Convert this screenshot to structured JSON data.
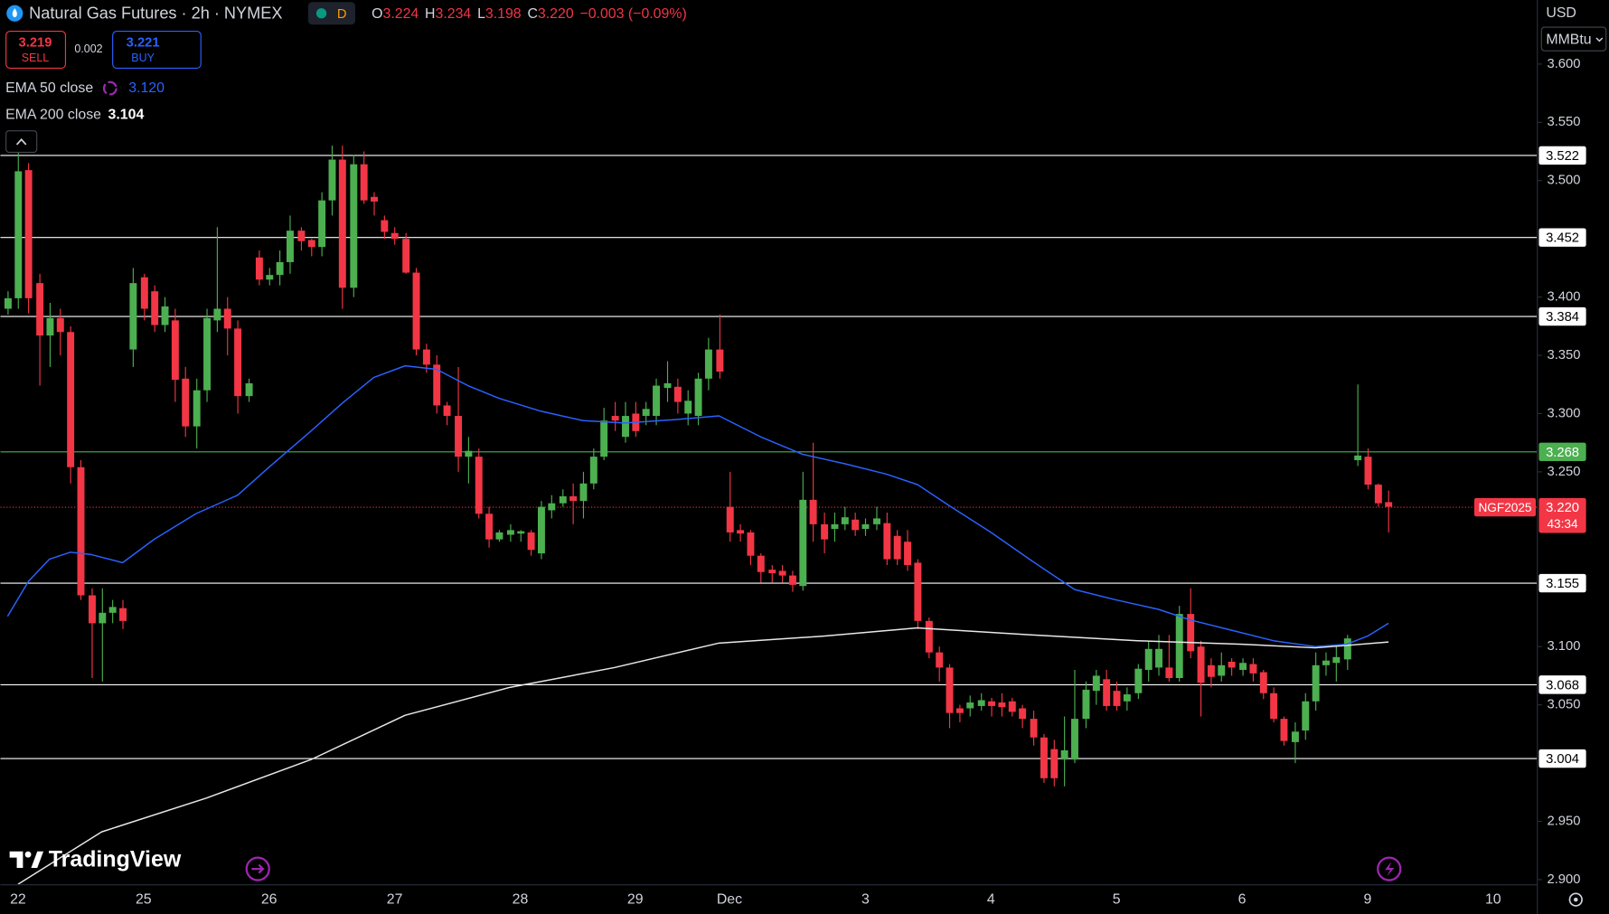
{
  "header": {
    "badge": "D",
    "ohlc": [
      {
        "label": "O",
        "value": "3.224"
      },
      {
        "label": "H",
        "value": "3.234"
      },
      {
        "label": "L",
        "value": "3.198"
      },
      {
        "label": "C",
        "value": "3.220"
      }
    ],
    "change": "−0.003 (−0.09%)"
  },
  "trade": {
    "sell_price": "3.219",
    "sell_label": "SELL",
    "spread": "0.002",
    "buy_price": "3.221",
    "buy_label": "BUY"
  },
  "currency": "USD",
  "unit": "MMBtu",
  "brand": "TradingView",
  "chart_data": {
    "type": "candlestick",
    "title": "Natural Gas Futures · 2h · NYMEX",
    "up_color": "#4caf50",
    "down_color": "#f23645",
    "ylim": [
      2.896,
      3.655
    ],
    "yticks": [
      {
        "value": 3.6,
        "label": "3.600"
      },
      {
        "value": 3.55,
        "label": "3.550"
      },
      {
        "value": 3.5,
        "label": "3.500"
      },
      {
        "value": 3.4,
        "label": "3.400"
      },
      {
        "value": 3.35,
        "label": "3.350"
      },
      {
        "value": 3.3,
        "label": "3.300"
      },
      {
        "value": 3.25,
        "label": "3.250"
      },
      {
        "value": 3.1,
        "label": "3.100"
      },
      {
        "value": 3.05,
        "label": "3.050"
      },
      {
        "value": 2.95,
        "label": "2.950"
      },
      {
        "value": 2.9,
        "label": "2.900"
      }
    ],
    "categories": [
      null,
      "22",
      null,
      null,
      null,
      null,
      null,
      null,
      null,
      null,
      null,
      null,
      null,
      "25",
      null,
      null,
      null,
      null,
      null,
      null,
      null,
      null,
      null,
      null,
      null,
      "26",
      null,
      null,
      null,
      null,
      null,
      null,
      null,
      null,
      null,
      null,
      null,
      "27",
      null,
      null,
      null,
      null,
      null,
      null,
      null,
      null,
      null,
      null,
      null,
      "28",
      null,
      null,
      null,
      null,
      null,
      null,
      null,
      null,
      null,
      null,
      "29",
      null,
      null,
      null,
      null,
      null,
      null,
      null,
      null,
      "Dec",
      null,
      null,
      null,
      null,
      null,
      null,
      null,
      null,
      null,
      null,
      null,
      null,
      "3",
      null,
      null,
      null,
      null,
      null,
      null,
      null,
      null,
      null,
      null,
      null,
      "4",
      null,
      null,
      null,
      null,
      null,
      null,
      null,
      null,
      null,
      null,
      null,
      "5",
      null,
      null,
      null,
      null,
      null,
      null,
      null,
      null,
      null,
      null,
      null,
      "6",
      null,
      null,
      null,
      null,
      null,
      null,
      null,
      null,
      null,
      null,
      null,
      "9",
      null,
      null,
      null,
      null,
      null,
      null,
      null,
      null,
      null,
      null,
      null,
      "10"
    ],
    "open": [
      3.39,
      3.399,
      3.509,
      3.412,
      3.367,
      3.382,
      3.37,
      3.254,
      3.144,
      3.12,
      3.129,
      3.133,
      3.355,
      3.417,
      3.405,
      3.376,
      3.38,
      3.33,
      3.289,
      3.32,
      3.38,
      3.39,
      3.373,
      3.315,
      3.434,
      3.415,
      3.419,
      3.43,
      3.457,
      3.449,
      3.443,
      3.483,
      3.518,
      3.408,
      3.514,
      3.486,
      3.466,
      3.455,
      3.45,
      3.421,
      3.355,
      3.342,
      3.307,
      3.298,
      3.263,
      3.263,
      3.214,
      3.192,
      3.196,
      3.197,
      3.198,
      3.18,
      3.217,
      3.223,
      3.229,
      3.225,
      3.24,
      3.263,
      3.298,
      3.28,
      3.3,
      3.298,
      3.298,
      3.322,
      3.323,
      3.3,
      3.298,
      3.33,
      3.355,
      3.22,
      3.2,
      3.198,
      3.178,
      3.166,
      3.165,
      3.161,
      3.152,
      3.226,
      3.205,
      3.201,
      3.205,
      3.209,
      3.201,
      3.205,
      3.206,
      3.195,
      3.19,
      3.172,
      3.122,
      3.095,
      3.082,
      3.047,
      3.047,
      3.049,
      3.053,
      3.052,
      3.053,
      3.047,
      3.038,
      3.022,
      3.012,
      3.003,
      3.003,
      3.038,
      3.062,
      3.072,
      3.062,
      3.053,
      3.06,
      3.08,
      3.082,
      3.082,
      3.073,
      3.128,
      3.1,
      3.084,
      3.075,
      3.087,
      3.08,
      3.085,
      3.078,
      3.06,
      3.038,
      3.018,
      3.028,
      3.053,
      3.084,
      3.086,
      3.089,
      3.26,
      3.263,
      3.239,
      3.224,
      null,
      null,
      null,
      null,
      null,
      null,
      null,
      null,
      null,
      null
    ],
    "high": [
      3.405,
      3.54,
      3.515,
      3.42,
      3.395,
      3.39,
      3.375,
      3.26,
      3.15,
      3.15,
      3.14,
      3.14,
      3.425,
      3.42,
      3.41,
      3.4,
      3.39,
      3.34,
      3.33,
      3.39,
      3.46,
      3.4,
      3.38,
      3.33,
      3.44,
      3.425,
      3.44,
      3.47,
      3.46,
      3.45,
      3.49,
      3.53,
      3.53,
      3.522,
      3.525,
      3.49,
      3.47,
      3.46,
      3.455,
      3.425,
      3.36,
      3.35,
      3.31,
      3.34,
      3.28,
      3.27,
      3.22,
      3.2,
      3.205,
      3.2,
      3.2,
      3.225,
      3.23,
      3.235,
      3.24,
      3.25,
      3.27,
      3.305,
      3.31,
      3.31,
      3.31,
      3.31,
      3.33,
      3.345,
      3.33,
      3.32,
      3.335,
      3.365,
      3.385,
      3.25,
      3.205,
      3.2,
      3.18,
      3.17,
      3.17,
      3.165,
      3.25,
      3.275,
      3.215,
      3.215,
      3.22,
      3.215,
      3.21,
      3.22,
      3.215,
      3.2,
      3.2,
      3.175,
      3.125,
      3.1,
      3.085,
      3.05,
      3.058,
      3.06,
      3.056,
      3.06,
      3.056,
      3.05,
      3.045,
      3.025,
      3.02,
      3.04,
      3.08,
      3.07,
      3.08,
      3.08,
      3.07,
      3.065,
      3.085,
      3.105,
      3.11,
      3.11,
      3.135,
      3.15,
      3.105,
      3.09,
      3.095,
      3.09,
      3.09,
      3.09,
      3.08,
      3.065,
      3.04,
      3.035,
      3.06,
      3.095,
      3.095,
      3.1,
      3.11,
      3.325,
      3.27,
      3.24,
      3.234,
      null,
      null,
      null,
      null,
      null,
      null,
      null,
      null,
      null,
      null
    ],
    "low": [
      3.385,
      3.39,
      3.386,
      3.324,
      3.34,
      3.35,
      3.24,
      3.14,
      3.073,
      3.07,
      3.12,
      3.115,
      3.34,
      3.38,
      3.37,
      3.37,
      3.31,
      3.28,
      3.27,
      3.31,
      3.37,
      3.35,
      3.3,
      3.31,
      3.41,
      3.41,
      3.41,
      3.42,
      3.44,
      3.435,
      3.435,
      3.47,
      3.39,
      3.4,
      3.48,
      3.47,
      3.45,
      3.445,
      3.42,
      3.35,
      3.335,
      3.3,
      3.29,
      3.25,
      3.24,
      3.21,
      3.185,
      3.19,
      3.19,
      3.19,
      3.178,
      3.175,
      3.21,
      3.22,
      3.205,
      3.21,
      3.235,
      3.26,
      3.285,
      3.275,
      3.28,
      3.29,
      3.29,
      3.31,
      3.3,
      3.29,
      3.29,
      3.32,
      3.33,
      3.19,
      3.19,
      3.17,
      3.155,
      3.155,
      3.155,
      3.147,
      3.148,
      3.19,
      3.18,
      3.19,
      3.2,
      3.195,
      3.195,
      3.2,
      3.17,
      3.17,
      3.165,
      3.115,
      3.09,
      3.07,
      3.03,
      3.035,
      3.04,
      3.045,
      3.04,
      3.04,
      3.04,
      3.03,
      3.015,
      2.983,
      2.98,
      2.98,
      3.0,
      3.03,
      3.05,
      3.045,
      3.045,
      3.045,
      3.055,
      3.07,
      3.075,
      3.07,
      3.07,
      3.09,
      3.04,
      3.065,
      3.07,
      3.075,
      3.075,
      3.07,
      3.055,
      3.035,
      3.015,
      3.0,
      3.02,
      3.045,
      3.075,
      3.07,
      3.08,
      3.255,
      3.235,
      3.22,
      3.198,
      null,
      null,
      null,
      null,
      null,
      null,
      null,
      null,
      null,
      null
    ],
    "close": [
      3.399,
      3.508,
      3.399,
      3.367,
      3.382,
      3.37,
      3.254,
      3.144,
      3.12,
      3.129,
      3.134,
      3.122,
      3.412,
      3.39,
      3.376,
      3.392,
      3.329,
      3.289,
      3.32,
      3.382,
      3.39,
      3.373,
      3.315,
      3.326,
      3.415,
      3.419,
      3.43,
      3.457,
      3.448,
      3.443,
      3.483,
      3.518,
      3.408,
      3.514,
      3.483,
      3.482,
      3.456,
      3.45,
      3.421,
      3.355,
      3.342,
      3.307,
      3.298,
      3.263,
      3.268,
      3.214,
      3.192,
      3.198,
      3.2,
      3.199,
      3.183,
      3.22,
      3.223,
      3.229,
      3.225,
      3.24,
      3.263,
      3.294,
      3.294,
      3.298,
      3.285,
      3.304,
      3.324,
      3.326,
      3.31,
      3.311,
      3.33,
      3.355,
      3.336,
      3.198,
      3.197,
      3.178,
      3.164,
      3.163,
      3.161,
      3.153,
      3.226,
      3.205,
      3.192,
      3.205,
      3.211,
      3.2,
      3.205,
      3.21,
      3.175,
      3.175,
      3.17,
      3.122,
      3.095,
      3.082,
      3.043,
      3.043,
      3.052,
      3.054,
      3.049,
      3.048,
      3.044,
      3.038,
      3.022,
      2.987,
      2.987,
      3.011,
      3.038,
      3.063,
      3.075,
      3.049,
      3.049,
      3.059,
      3.081,
      3.098,
      3.098,
      3.073,
      3.128,
      3.096,
      3.069,
      3.074,
      3.084,
      3.082,
      3.086,
      3.077,
      3.06,
      3.038,
      3.019,
      3.027,
      3.053,
      3.084,
      3.088,
      3.091,
      3.107,
      3.264,
      3.239,
      3.223,
      3.22,
      null,
      null,
      null,
      null,
      null,
      null,
      null,
      null,
      null,
      null
    ],
    "lines": [
      {
        "name": "EMA 50 close",
        "color": "#2962ff",
        "last_label": "3.120",
        "x": [
          0,
          2,
          4,
          6,
          8,
          11,
          14,
          18,
          22,
          25,
          29,
          32,
          35,
          38,
          41,
          44,
          47,
          51,
          55,
          59,
          64,
          68,
          72,
          76,
          80,
          84,
          87,
          90,
          94,
          98,
          102,
          106,
          110,
          113,
          117,
          121,
          125,
          128,
          130,
          132
        ],
        "values": [
          3.126,
          3.156,
          3.175,
          3.181,
          3.179,
          3.172,
          3.192,
          3.214,
          3.23,
          3.254,
          3.285,
          3.309,
          3.331,
          3.341,
          3.338,
          3.324,
          3.313,
          3.302,
          3.294,
          3.292,
          3.295,
          3.298,
          3.28,
          3.265,
          3.257,
          3.248,
          3.239,
          3.221,
          3.198,
          3.173,
          3.149,
          3.14,
          3.132,
          3.123,
          3.114,
          3.105,
          3.1,
          3.102,
          3.109,
          3.12
        ]
      },
      {
        "name": "EMA 200 close",
        "color": "#e8e8e8",
        "last_label": "3.104",
        "x": [
          1,
          9,
          19,
          29,
          38,
          48,
          58,
          68,
          78,
          87,
          98,
          108,
          118,
          125,
          128,
          132
        ],
        "values": [
          2.896,
          2.941,
          2.97,
          3.003,
          3.041,
          3.065,
          3.082,
          3.103,
          3.109,
          3.116,
          3.11,
          3.105,
          3.102,
          3.099,
          3.101,
          3.104
        ]
      }
    ],
    "hlines": [
      {
        "value": 3.522,
        "color": "#ffffff"
      },
      {
        "value": 3.452,
        "color": "#ffffff"
      },
      {
        "value": 3.384,
        "color": "#ffffff"
      },
      {
        "value": 3.268,
        "color": "#4caf50"
      },
      {
        "value": 3.155,
        "color": "#ffffff"
      },
      {
        "value": 3.068,
        "color": "#ffffff"
      },
      {
        "value": 3.004,
        "color": "#ffffff"
      }
    ],
    "last_price": {
      "value": 3.22,
      "label": "3.220",
      "symbol": "NGF2025",
      "countdown": "43:34",
      "color": "#f23645"
    }
  }
}
